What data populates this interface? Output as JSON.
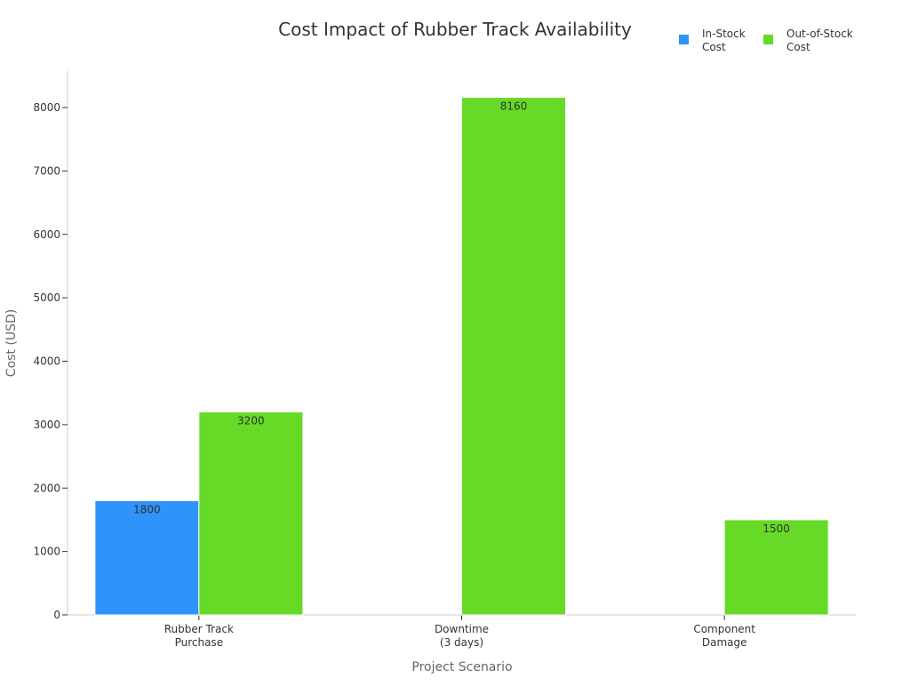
{
  "chart_data": {
    "type": "bar",
    "title": "Cost Impact of Rubber Track Availability",
    "xlabel": "Project Scenario",
    "ylabel": "Cost (USD)",
    "categories": [
      [
        "Rubber Track",
        "Purchase"
      ],
      [
        "Downtime",
        "(3 days)"
      ],
      [
        "Component",
        "Damage"
      ]
    ],
    "series": [
      {
        "name": [
          "In-Stock",
          "Cost"
        ],
        "values": [
          1800,
          null,
          null
        ],
        "color": "#2e93fa"
      },
      {
        "name": [
          "Out-of-Stock",
          "Cost"
        ],
        "values": [
          3200,
          8160,
          1500
        ],
        "color": "#66da26"
      }
    ],
    "ylim": [
      0,
      8600
    ],
    "yticks": [
      0,
      1000,
      2000,
      3000,
      4000,
      5000,
      6000,
      7000,
      8000
    ],
    "grid": false,
    "legend_position": "top-right",
    "data_labels": true
  }
}
